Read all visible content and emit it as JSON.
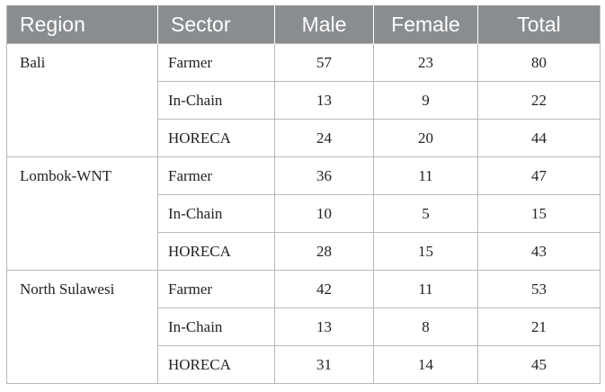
{
  "table": {
    "headers": [
      "Region",
      "Sector",
      "Male",
      "Female",
      "Total"
    ],
    "groups": [
      {
        "region": "Bali",
        "rows": [
          {
            "sector": "Farmer",
            "male": "57",
            "female": "23",
            "total": "80"
          },
          {
            "sector": "In-Chain",
            "male": "13",
            "female": "9",
            "total": "22"
          },
          {
            "sector": "HORECA",
            "male": "24",
            "female": "20",
            "total": "44"
          }
        ]
      },
      {
        "region": "Lombok-WNT",
        "rows": [
          {
            "sector": "Farmer",
            "male": "36",
            "female": "11",
            "total": "47"
          },
          {
            "sector": "In-Chain",
            "male": "10",
            "female": "5",
            "total": "15"
          },
          {
            "sector": "HORECA",
            "male": "28",
            "female": "15",
            "total": "43"
          }
        ]
      },
      {
        "region": "North Sulawesi",
        "rows": [
          {
            "sector": "Farmer",
            "male": "42",
            "female": "11",
            "total": "53"
          },
          {
            "sector": "In-Chain",
            "male": "13",
            "female": "8",
            "total": "21"
          },
          {
            "sector": "HORECA",
            "male": "31",
            "female": "14",
            "total": "45"
          }
        ]
      }
    ]
  },
  "colors": {
    "header_bg": "#8a8d90",
    "header_text": "#ffffff",
    "border": "#b9b9b9"
  }
}
